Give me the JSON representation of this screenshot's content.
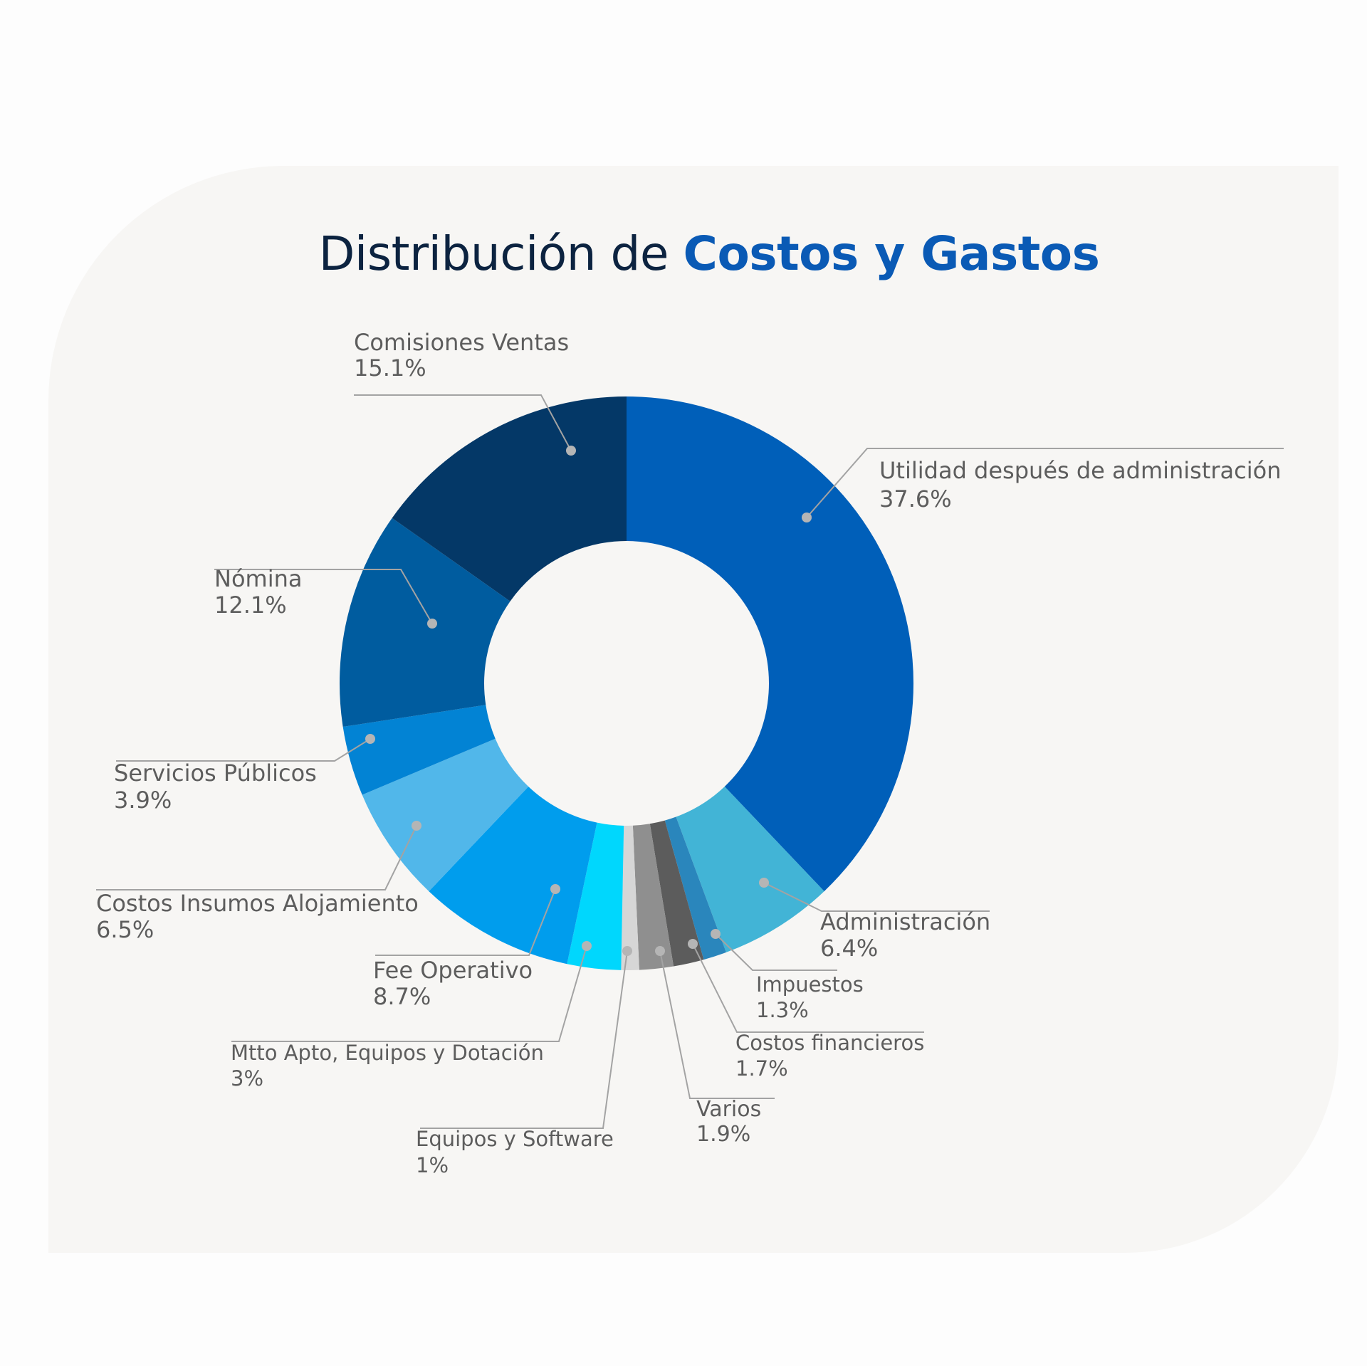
{
  "title": {
    "prefix": "Distribución de",
    "highlight": "Costos y Gastos"
  },
  "colors": {
    "title": "#0c2340",
    "accent": "#0a5ab5",
    "label": "#5d5d5d",
    "leader": "#a3a3a3",
    "dot": "#b5b5b5",
    "card": "#f7f6f4"
  },
  "chart_data": {
    "type": "pie",
    "variant": "donut",
    "title": "Distribución de Costos y Gastos",
    "slices": [
      {
        "label": "Utilidad después de administración",
        "value": 37.6,
        "value_label": "37.6%",
        "color": "#005fb9"
      },
      {
        "label": "Administración",
        "value": 6.4,
        "value_label": "6.4%",
        "color": "#42b4d6"
      },
      {
        "label": "Impuestos",
        "value": 1.3,
        "value_label": "1.3%",
        "color": "#2a86bc"
      },
      {
        "label": "Costos financieros",
        "value": 1.7,
        "value_label": "1.7%",
        "color": "#5c5c5c"
      },
      {
        "label": "Varios",
        "value": 1.9,
        "value_label": "1.9%",
        "color": "#8f8f8f"
      },
      {
        "label": "Equipos y Software",
        "value": 1.0,
        "value_label": "1%",
        "color": "#d6d6d6"
      },
      {
        "label": "Mtto Apto, Equipos y Dotación",
        "value": 3.0,
        "value_label": "3%",
        "color": "#00d7fd"
      },
      {
        "label": "Fee Operativo",
        "value": 8.7,
        "value_label": "8.7%",
        "color": "#009ded"
      },
      {
        "label": "Costos Insumos Alojamiento",
        "value": 6.5,
        "value_label": "6.5%",
        "color": "#51b7ea"
      },
      {
        "label": "Servicios Públicos",
        "value": 3.9,
        "value_label": "3.9%",
        "color": "#0283d4"
      },
      {
        "label": "Nómina",
        "value": 12.1,
        "value_label": "12.1%",
        "color": "#005c9f"
      },
      {
        "label": "Comisiones Ventas",
        "value": 15.1,
        "value_label": "15.1%",
        "color": "#043867"
      }
    ]
  }
}
